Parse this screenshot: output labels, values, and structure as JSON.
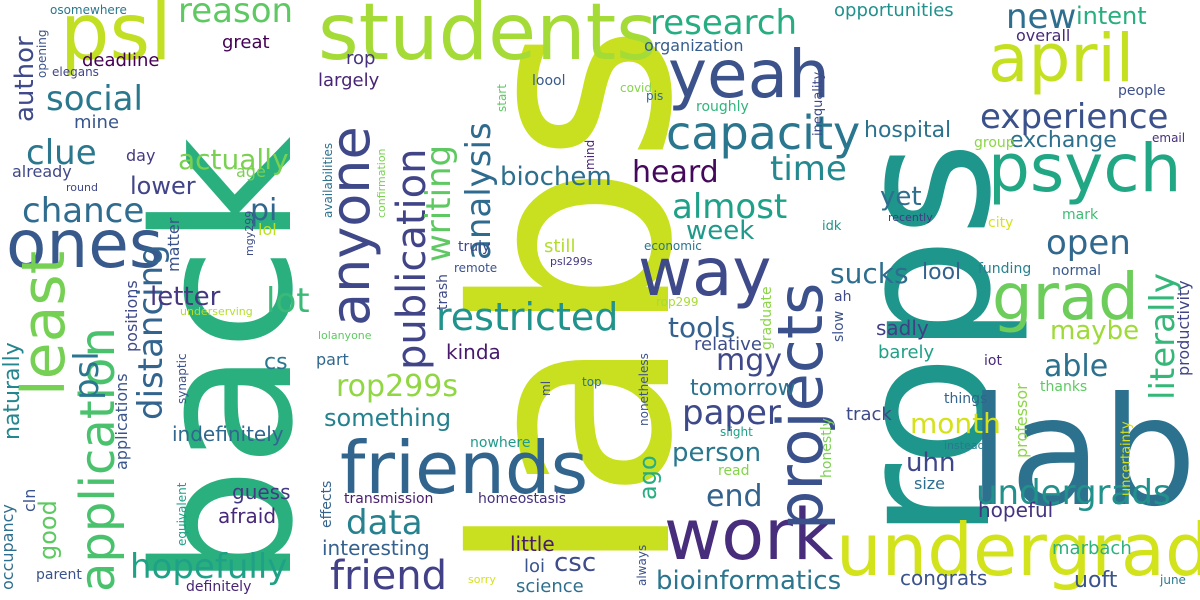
{
  "words": [
    {
      "text": "labs",
      "color": "#c8e020"
    },
    {
      "text": "back",
      "color": "#2ab07f"
    },
    {
      "text": "rops",
      "color": "#1f968b"
    },
    {
      "text": "lab",
      "color": "#2c728e"
    },
    {
      "text": "students",
      "color": "#a5db36"
    },
    {
      "text": "psl",
      "color": "#c2df23"
    },
    {
      "text": "anyone",
      "color": "#3f4889"
    },
    {
      "text": "friends",
      "color": "#32658e"
    },
    {
      "text": "work",
      "color": "#472d7b"
    },
    {
      "text": "undergrad",
      "color": "#d2e21b"
    },
    {
      "text": "projects",
      "color": "#3b518b"
    },
    {
      "text": "way",
      "color": "#3e4a89"
    },
    {
      "text": "yeah",
      "color": "#3b528b"
    },
    {
      "text": "april",
      "color": "#c5e021"
    },
    {
      "text": "psych",
      "color": "#22a785"
    },
    {
      "text": "grad",
      "color": "#6ccd5a"
    },
    {
      "text": "ones",
      "color": "#38598c"
    },
    {
      "text": "least",
      "color": "#75d054"
    },
    {
      "text": "application",
      "color": "#4ac16d"
    },
    {
      "text": "publication",
      "color": "#414487"
    },
    {
      "text": "capacity",
      "color": "#2a768e"
    },
    {
      "text": "friend",
      "color": "#424086"
    },
    {
      "text": "psl",
      "color": "#2a768e"
    },
    {
      "text": "hopefully",
      "color": "#1fa187"
    },
    {
      "text": "reason",
      "color": "#5ec962"
    },
    {
      "text": "research",
      "color": "#26ad81"
    },
    {
      "text": "experience",
      "color": "#3b518b"
    },
    {
      "text": "social",
      "color": "#2a788e"
    },
    {
      "text": "restricted",
      "color": "#20938c"
    },
    {
      "text": "writing",
      "color": "#5ec962"
    },
    {
      "text": "analysis",
      "color": "#2f6b8e"
    },
    {
      "text": "undergrads",
      "color": "#21918c"
    },
    {
      "text": "literally",
      "color": "#35b779"
    },
    {
      "text": "paper",
      "color": "#3e4989"
    },
    {
      "text": "rop299s",
      "color": "#90d743"
    },
    {
      "text": "distancing",
      "color": "#32648e"
    },
    {
      "text": "data",
      "color": "#26828e"
    },
    {
      "text": "chance",
      "color": "#2f6c8e"
    },
    {
      "text": "clue",
      "color": "#2a778e"
    },
    {
      "text": "open",
      "color": "#30688e"
    },
    {
      "text": "almost",
      "color": "#1fa088"
    },
    {
      "text": "time",
      "color": "#23898e"
    },
    {
      "text": "new",
      "color": "#2e6e8e"
    },
    {
      "text": "intent",
      "color": "#29af7f"
    },
    {
      "text": "actually",
      "color": "#7ad151"
    },
    {
      "text": "lot",
      "color": "#3aba76"
    },
    {
      "text": "heard",
      "color": "#46085c"
    },
    {
      "text": "biochem",
      "color": "#2e6f8e"
    },
    {
      "text": "week",
      "color": "#1f998a"
    },
    {
      "text": "sucks",
      "color": "#2e6d8e"
    },
    {
      "text": "end",
      "color": "#33638d"
    },
    {
      "text": "tools",
      "color": "#34618d"
    },
    {
      "text": "able",
      "color": "#2c718e"
    },
    {
      "text": "maybe",
      "color": "#9fda3a"
    },
    {
      "text": "month",
      "color": "#d5e21a"
    },
    {
      "text": "mgy",
      "color": "#3f4889"
    },
    {
      "text": "person",
      "color": "#2a778e"
    },
    {
      "text": "bioinformatics",
      "color": "#2b758e"
    },
    {
      "text": "something",
      "color": "#26818e"
    },
    {
      "text": "lower",
      "color": "#414487"
    },
    {
      "text": "pi",
      "color": "#31668e"
    },
    {
      "text": "letter",
      "color": "#453781"
    },
    {
      "text": "author",
      "color": "#3e4a89"
    },
    {
      "text": "csc",
      "color": "#3e4c8a"
    },
    {
      "text": "tomorrow",
      "color": "#2c718e"
    },
    {
      "text": "uhn",
      "color": "#3f4788"
    },
    {
      "text": "yet",
      "color": "#2e6e8e"
    },
    {
      "text": "lool",
      "color": "#33628d"
    },
    {
      "text": "hospital",
      "color": "#2c728e"
    },
    {
      "text": "exchange",
      "color": "#2d708e"
    },
    {
      "text": "ago",
      "color": "#26ad81"
    },
    {
      "text": "good",
      "color": "#5ec962"
    },
    {
      "text": "naturally",
      "color": "#24868e"
    },
    {
      "text": "guess",
      "color": "#443a83"
    },
    {
      "text": "afraid",
      "color": "#482878"
    },
    {
      "text": "cs",
      "color": "#2a788e"
    },
    {
      "text": "indefinitely",
      "color": "#31668e"
    },
    {
      "text": "kinda",
      "color": "#481a6c"
    },
    {
      "text": "interesting",
      "color": "#34618d"
    },
    {
      "text": "little",
      "color": "#481b6d"
    },
    {
      "text": "loi",
      "color": "#39558c"
    },
    {
      "text": "science",
      "color": "#2e6f8e"
    },
    {
      "text": "congrats",
      "color": "#3b528b"
    },
    {
      "text": "uoft",
      "color": "#3a538b"
    },
    {
      "text": "marbach",
      "color": "#2db27d"
    },
    {
      "text": "hopeful",
      "color": "#463480"
    },
    {
      "text": "size",
      "color": "#2e6e8e"
    },
    {
      "text": "track",
      "color": "#3e4989"
    },
    {
      "text": "sadly",
      "color": "#423f85"
    },
    {
      "text": "barely",
      "color": "#1fa188"
    },
    {
      "text": "relative",
      "color": "#3c4f8a"
    },
    {
      "text": "still",
      "color": "#b2dd2d"
    },
    {
      "text": "opportunities",
      "color": "#21918c"
    },
    {
      "text": "organization",
      "color": "#365d8d"
    },
    {
      "text": "overall",
      "color": "#472a7a"
    },
    {
      "text": "deadline",
      "color": "#440154"
    },
    {
      "text": "great",
      "color": "#440154"
    },
    {
      "text": "rop",
      "color": "#46327e"
    },
    {
      "text": "largely",
      "color": "#482475"
    },
    {
      "text": "mine",
      "color": "#39568c"
    },
    {
      "text": "day",
      "color": "#453882"
    },
    {
      "text": "already",
      "color": "#3f4889"
    },
    {
      "text": "age",
      "color": "#7ad151"
    },
    {
      "text": "lol",
      "color": "#bddf26"
    },
    {
      "text": "matter",
      "color": "#3b528b"
    },
    {
      "text": "positions",
      "color": "#3e4a89"
    },
    {
      "text": "applications",
      "color": "#3a548c"
    },
    {
      "text": "part",
      "color": "#31688e"
    },
    {
      "text": "occupancy",
      "color": "#2e6e8e"
    },
    {
      "text": "cln",
      "color": "#3b528b"
    },
    {
      "text": "parent",
      "color": "#3b528b"
    },
    {
      "text": "equivalent",
      "color": "#1f9e89"
    },
    {
      "text": "definitely",
      "color": "#482475"
    },
    {
      "text": "transmission",
      "color": "#481c6e"
    },
    {
      "text": "effects",
      "color": "#33638d"
    },
    {
      "text": "homeostasis",
      "color": "#46307e"
    },
    {
      "text": "loool",
      "color": "#38598c"
    },
    {
      "text": "roughly",
      "color": "#2fb47c"
    },
    {
      "text": "people",
      "color": "#3d4e8a"
    },
    {
      "text": "email",
      "color": "#472f7d"
    },
    {
      "text": "group",
      "color": "#8bd646"
    },
    {
      "text": "city",
      "color": "#d8e219"
    },
    {
      "text": "mark",
      "color": "#3dbc74"
    },
    {
      "text": "funding",
      "color": "#26828e"
    },
    {
      "text": "normal",
      "color": "#38588c"
    },
    {
      "text": "iot",
      "color": "#482878"
    },
    {
      "text": "things",
      "color": "#32648e"
    },
    {
      "text": "thanks",
      "color": "#5ec962"
    },
    {
      "text": "instead",
      "color": "#2a788e"
    },
    {
      "text": "recently",
      "color": "#443983"
    },
    {
      "text": "idk",
      "color": "#20928c"
    },
    {
      "text": "ah",
      "color": "#3f4889"
    },
    {
      "text": "economic",
      "color": "#2c738e"
    },
    {
      "text": "remote",
      "color": "#3b528b"
    },
    {
      "text": "truly",
      "color": "#3e4989"
    },
    {
      "text": "rop299",
      "color": "#a8db34"
    },
    {
      "text": "psl299s",
      "color": "#453882"
    },
    {
      "text": "top",
      "color": "#2c718e"
    },
    {
      "text": "slight",
      "color": "#1fa088"
    },
    {
      "text": "read",
      "color": "#84d44b"
    },
    {
      "text": "nowhere",
      "color": "#1f9a8a"
    },
    {
      "text": "sorry",
      "color": "#d5e21a"
    },
    {
      "text": "mgy299",
      "color": "#3d4d8a"
    },
    {
      "text": "round",
      "color": "#3f4788"
    },
    {
      "text": "elegans",
      "color": "#414487"
    },
    {
      "text": "covid",
      "color": "#84d44b"
    },
    {
      "text": "pis",
      "color": "#2f6c8e"
    },
    {
      "text": "june",
      "color": "#2a788e"
    },
    {
      "text": "underserving",
      "color": "#b5de2b"
    },
    {
      "text": "lolanyone",
      "color": "#5ec962"
    },
    {
      "text": "osomewhere",
      "color": "#2a788e"
    },
    {
      "text": "synaptic",
      "color": "#3b528b"
    },
    {
      "text": "ml",
      "color": "#3e4a89"
    },
    {
      "text": "opening",
      "color": "#3b528b"
    },
    {
      "text": "availabilities",
      "color": "#2c718e"
    },
    {
      "text": "confirmation",
      "color": "#7ad151"
    },
    {
      "text": "start",
      "color": "#5ec962"
    },
    {
      "text": "mind",
      "color": "#482475"
    },
    {
      "text": "trash",
      "color": "#3e4a89"
    },
    {
      "text": "always",
      "color": "#3b528b"
    },
    {
      "text": "nonetheless",
      "color": "#3b528b"
    },
    {
      "text": "graduate",
      "color": "#8bd646"
    },
    {
      "text": "slow",
      "color": "#3b528b"
    },
    {
      "text": "inequality",
      "color": "#3e4a89"
    },
    {
      "text": "honestly",
      "color": "#7ad151"
    },
    {
      "text": "professor",
      "color": "#8bd646"
    },
    {
      "text": "productivity",
      "color": "#414487"
    },
    {
      "text": "uncertainty",
      "color": "#d8e219"
    }
  ]
}
